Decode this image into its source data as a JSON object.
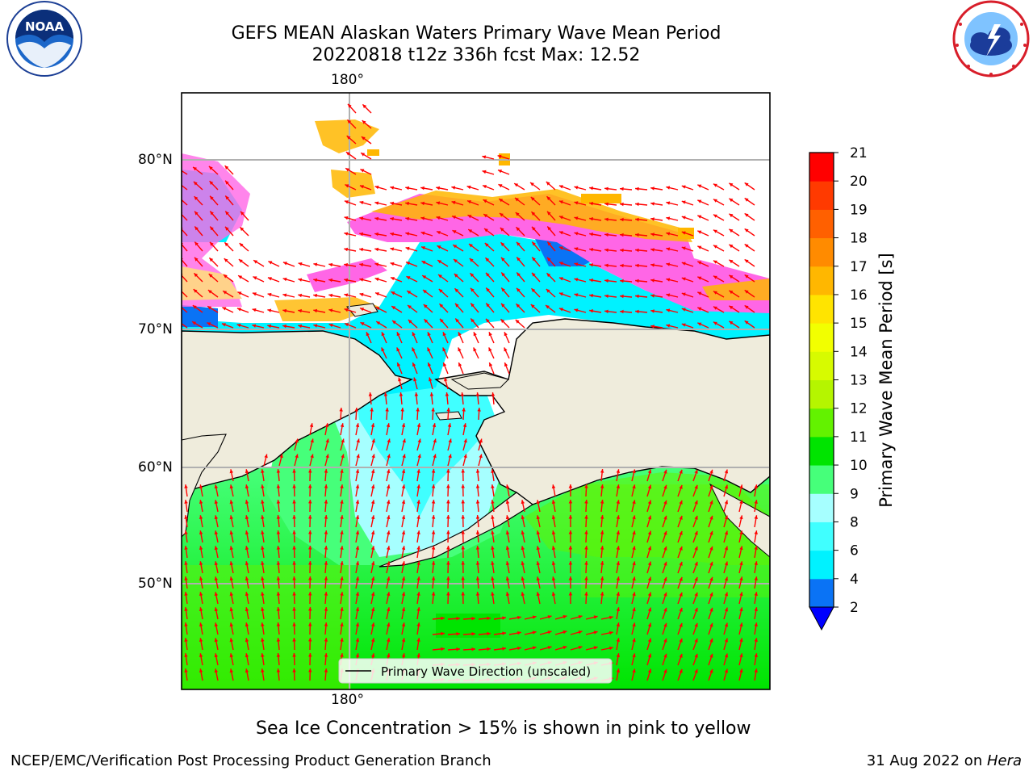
{
  "title": {
    "line1": "GEFS MEAN Alaskan Waters Primary Wave Mean Period",
    "line2": "20220818 t12z 336h fcst   Max: 12.52"
  },
  "logos": {
    "noaa": {
      "text": "NOAA",
      "icon": "noaa-seagull-logo"
    },
    "nws": {
      "icon": "nws-tornado-cloud-logo"
    }
  },
  "map": {
    "lon_label_top": "180°",
    "lon_label_bottom": "180°",
    "lat_labels": [
      "80°N",
      "70°N",
      "60°N",
      "50°N"
    ],
    "legend_label": "Primary Wave Direction (unscaled)",
    "land_color": "#efecdc",
    "arrow_color": "#ff0000"
  },
  "colorbar": {
    "label": "Primary Wave Mean Period [s]",
    "ticks": [
      "2",
      "4",
      "6",
      "8",
      "9",
      "10",
      "11",
      "12",
      "13",
      "14",
      "15",
      "16",
      "17",
      "18",
      "19",
      "20",
      "21"
    ],
    "colors": [
      "#0a73f5",
      "#00f2ff",
      "#40ffff",
      "#a6ffff",
      "#46ff7a",
      "#00e400",
      "#63f200",
      "#b5f500",
      "#d7fb00",
      "#f2ff00",
      "#ffe400",
      "#ffb700",
      "#ff8b00",
      "#ff6000",
      "#ff3a00",
      "#ff0000"
    ],
    "under_color": "#0000ff"
  },
  "caption": "Sea Ice Concentration > 15% is shown in pink to yellow",
  "footer": {
    "left": "NCEP/EMC/Verification Post Processing Product Generation Branch",
    "right_date": "31 Aug 2022 on ",
    "right_host": "Hera"
  }
}
